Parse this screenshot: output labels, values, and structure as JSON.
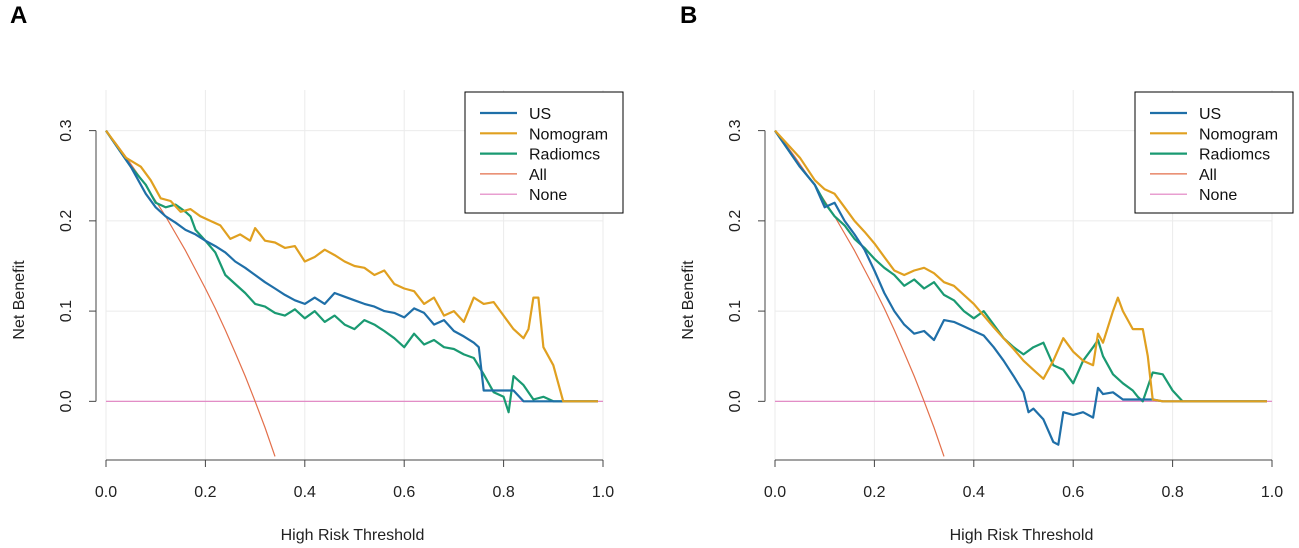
{
  "colors": {
    "US": "#1f6fa8",
    "Nomogram": "#e0a020",
    "Radiomcs": "#1a9a72",
    "All": "#e36f4a",
    "None": "#e07fc0",
    "grid": "#ebebeb",
    "axis": "#444444"
  },
  "chart_data": [
    {
      "panel": "A",
      "type": "line",
      "xlabel": "High Risk Threshold",
      "ylabel": "Net Benefit",
      "xlim": [
        0,
        1
      ],
      "ylim": [
        -0.065,
        0.345
      ],
      "xticks": [
        "0.0",
        "0.2",
        "0.4",
        "0.6",
        "0.8",
        "1.0"
      ],
      "yticks": [
        "0.0",
        "0.1",
        "0.2",
        "0.3"
      ],
      "legend_position": "top-right",
      "series": [
        {
          "name": "US",
          "x": [
            0,
            0.05,
            0.08,
            0.1,
            0.12,
            0.14,
            0.16,
            0.18,
            0.2,
            0.22,
            0.24,
            0.26,
            0.28,
            0.3,
            0.32,
            0.34,
            0.36,
            0.38,
            0.4,
            0.42,
            0.44,
            0.46,
            0.48,
            0.5,
            0.52,
            0.54,
            0.56,
            0.58,
            0.6,
            0.62,
            0.64,
            0.66,
            0.68,
            0.7,
            0.72,
            0.74,
            0.75,
            0.76,
            0.78,
            0.8,
            0.82,
            0.84,
            0.86,
            0.88,
            0.9,
            0.95,
            0.99
          ],
          "y": [
            0.3,
            0.26,
            0.23,
            0.215,
            0.205,
            0.198,
            0.19,
            0.185,
            0.178,
            0.172,
            0.165,
            0.155,
            0.148,
            0.14,
            0.132,
            0.125,
            0.118,
            0.112,
            0.108,
            0.115,
            0.108,
            0.12,
            0.116,
            0.112,
            0.108,
            0.105,
            0.1,
            0.098,
            0.093,
            0.103,
            0.098,
            0.085,
            0.09,
            0.078,
            0.072,
            0.065,
            0.06,
            0.012,
            0.012,
            0.012,
            0.012,
            0,
            0,
            0,
            0,
            0,
            0
          ]
        },
        {
          "name": "Nomogram",
          "x": [
            0,
            0.04,
            0.07,
            0.09,
            0.11,
            0.13,
            0.15,
            0.17,
            0.19,
            0.21,
            0.23,
            0.25,
            0.27,
            0.29,
            0.3,
            0.32,
            0.34,
            0.36,
            0.38,
            0.4,
            0.42,
            0.44,
            0.46,
            0.48,
            0.5,
            0.52,
            0.54,
            0.56,
            0.58,
            0.6,
            0.62,
            0.64,
            0.66,
            0.68,
            0.7,
            0.72,
            0.74,
            0.76,
            0.78,
            0.8,
            0.82,
            0.84,
            0.85,
            0.86,
            0.87,
            0.88,
            0.9,
            0.92,
            0.95,
            0.99
          ],
          "y": [
            0.3,
            0.27,
            0.26,
            0.245,
            0.225,
            0.222,
            0.21,
            0.213,
            0.205,
            0.2,
            0.195,
            0.18,
            0.185,
            0.178,
            0.192,
            0.178,
            0.176,
            0.17,
            0.172,
            0.155,
            0.16,
            0.168,
            0.162,
            0.155,
            0.15,
            0.148,
            0.14,
            0.145,
            0.13,
            0.125,
            0.122,
            0.108,
            0.115,
            0.095,
            0.1,
            0.088,
            0.115,
            0.108,
            0.11,
            0.095,
            0.08,
            0.07,
            0.08,
            0.115,
            0.115,
            0.06,
            0.04,
            0,
            0,
            0
          ]
        },
        {
          "name": "Radiomcs",
          "x": [
            0,
            0.05,
            0.08,
            0.1,
            0.12,
            0.14,
            0.16,
            0.17,
            0.18,
            0.2,
            0.22,
            0.24,
            0.26,
            0.28,
            0.3,
            0.32,
            0.34,
            0.36,
            0.38,
            0.4,
            0.42,
            0.44,
            0.46,
            0.48,
            0.5,
            0.52,
            0.54,
            0.56,
            0.58,
            0.6,
            0.62,
            0.64,
            0.66,
            0.68,
            0.7,
            0.72,
            0.74,
            0.76,
            0.78,
            0.8,
            0.81,
            0.82,
            0.84,
            0.86,
            0.88,
            0.9,
            0.95,
            0.99
          ],
          "y": [
            0.3,
            0.26,
            0.24,
            0.22,
            0.215,
            0.218,
            0.21,
            0.205,
            0.19,
            0.178,
            0.165,
            0.14,
            0.13,
            0.12,
            0.108,
            0.105,
            0.098,
            0.095,
            0.102,
            0.092,
            0.1,
            0.088,
            0.095,
            0.085,
            0.08,
            0.09,
            0.085,
            0.078,
            0.07,
            0.06,
            0.075,
            0.063,
            0.068,
            0.06,
            0.058,
            0.052,
            0.048,
            0.03,
            0.01,
            0.005,
            -0.012,
            0.028,
            0.018,
            0.002,
            0.005,
            0,
            0,
            0
          ]
        },
        {
          "name": "All",
          "x": [
            0,
            0.02,
            0.04,
            0.06,
            0.08,
            0.1,
            0.12,
            0.14,
            0.16,
            0.18,
            0.2,
            0.22,
            0.24,
            0.26,
            0.28,
            0.3,
            0.32,
            0.34
          ],
          "y": [
            0.3,
            0.286,
            0.271,
            0.255,
            0.239,
            0.222,
            0.205,
            0.186,
            0.167,
            0.146,
            0.125,
            0.103,
            0.079,
            0.054,
            0.028,
            0.0,
            -0.029,
            -0.061
          ]
        },
        {
          "name": "None",
          "x": [
            0,
            1
          ],
          "y": [
            0,
            0
          ]
        }
      ]
    },
    {
      "panel": "B",
      "type": "line",
      "xlabel": "High Risk Threshold",
      "ylabel": "Net Benefit",
      "xlim": [
        0,
        1
      ],
      "ylim": [
        -0.065,
        0.345
      ],
      "xticks": [
        "0.0",
        "0.2",
        "0.4",
        "0.6",
        "0.8",
        "1.0"
      ],
      "yticks": [
        "0.0",
        "0.1",
        "0.2",
        "0.3"
      ],
      "legend_position": "top-right",
      "series": [
        {
          "name": "US",
          "x": [
            0,
            0.05,
            0.08,
            0.1,
            0.12,
            0.14,
            0.16,
            0.18,
            0.2,
            0.22,
            0.24,
            0.26,
            0.28,
            0.3,
            0.32,
            0.34,
            0.36,
            0.38,
            0.4,
            0.42,
            0.44,
            0.46,
            0.48,
            0.5,
            0.51,
            0.52,
            0.54,
            0.56,
            0.57,
            0.58,
            0.6,
            0.62,
            0.64,
            0.65,
            0.66,
            0.68,
            0.7,
            0.72,
            0.74,
            0.76,
            0.78,
            0.8,
            0.85,
            0.9,
            0.95,
            0.99
          ],
          "y": [
            0.3,
            0.26,
            0.24,
            0.215,
            0.22,
            0.2,
            0.185,
            0.168,
            0.145,
            0.12,
            0.1,
            0.085,
            0.075,
            0.078,
            0.068,
            0.09,
            0.088,
            0.083,
            0.078,
            0.073,
            0.06,
            0.045,
            0.028,
            0.01,
            -0.012,
            -0.008,
            -0.02,
            -0.045,
            -0.048,
            -0.012,
            -0.015,
            -0.012,
            -0.018,
            0.015,
            0.008,
            0.01,
            0.002,
            0.002,
            0.002,
            0.002,
            0,
            0,
            0,
            0,
            0,
            0
          ]
        },
        {
          "name": "Nomogram",
          "x": [
            0,
            0.05,
            0.08,
            0.1,
            0.12,
            0.14,
            0.16,
            0.18,
            0.2,
            0.22,
            0.24,
            0.26,
            0.28,
            0.3,
            0.32,
            0.34,
            0.36,
            0.38,
            0.4,
            0.42,
            0.44,
            0.46,
            0.48,
            0.5,
            0.52,
            0.54,
            0.56,
            0.58,
            0.6,
            0.62,
            0.64,
            0.65,
            0.66,
            0.68,
            0.69,
            0.7,
            0.72,
            0.74,
            0.75,
            0.76,
            0.78,
            0.8,
            0.85,
            0.9,
            0.95,
            0.99
          ],
          "y": [
            0.3,
            0.27,
            0.245,
            0.235,
            0.23,
            0.215,
            0.2,
            0.188,
            0.175,
            0.16,
            0.145,
            0.14,
            0.145,
            0.148,
            0.142,
            0.132,
            0.128,
            0.118,
            0.108,
            0.095,
            0.082,
            0.07,
            0.058,
            0.045,
            0.035,
            0.025,
            0.045,
            0.07,
            0.055,
            0.045,
            0.04,
            0.075,
            0.065,
            0.1,
            0.115,
            0.1,
            0.08,
            0.08,
            0.05,
            0.002,
            0,
            0,
            0,
            0,
            0,
            0
          ]
        },
        {
          "name": "Radiomcs",
          "x": [
            0,
            0.05,
            0.08,
            0.1,
            0.12,
            0.14,
            0.16,
            0.18,
            0.2,
            0.22,
            0.24,
            0.26,
            0.28,
            0.3,
            0.32,
            0.34,
            0.36,
            0.38,
            0.4,
            0.42,
            0.44,
            0.46,
            0.48,
            0.5,
            0.52,
            0.54,
            0.56,
            0.58,
            0.6,
            0.62,
            0.64,
            0.65,
            0.66,
            0.68,
            0.7,
            0.72,
            0.73,
            0.74,
            0.76,
            0.78,
            0.8,
            0.82,
            0.85,
            0.9,
            0.95,
            0.99
          ],
          "y": [
            0.3,
            0.26,
            0.24,
            0.22,
            0.205,
            0.195,
            0.18,
            0.17,
            0.158,
            0.148,
            0.14,
            0.128,
            0.135,
            0.125,
            0.132,
            0.118,
            0.112,
            0.1,
            0.092,
            0.1,
            0.085,
            0.07,
            0.06,
            0.052,
            0.06,
            0.065,
            0.04,
            0.035,
            0.02,
            0.045,
            0.06,
            0.068,
            0.05,
            0.03,
            0.02,
            0.012,
            0.005,
            0,
            0.032,
            0.03,
            0.012,
            0,
            0,
            0,
            0,
            0
          ]
        },
        {
          "name": "All",
          "x": [
            0,
            0.02,
            0.04,
            0.06,
            0.08,
            0.1,
            0.12,
            0.14,
            0.16,
            0.18,
            0.2,
            0.22,
            0.24,
            0.26,
            0.28,
            0.3,
            0.32,
            0.34
          ],
          "y": [
            0.3,
            0.286,
            0.271,
            0.255,
            0.239,
            0.222,
            0.205,
            0.186,
            0.167,
            0.146,
            0.125,
            0.103,
            0.079,
            0.054,
            0.028,
            0.0,
            -0.029,
            -0.061
          ]
        },
        {
          "name": "None",
          "x": [
            0,
            1
          ],
          "y": [
            0,
            0
          ]
        }
      ]
    }
  ]
}
